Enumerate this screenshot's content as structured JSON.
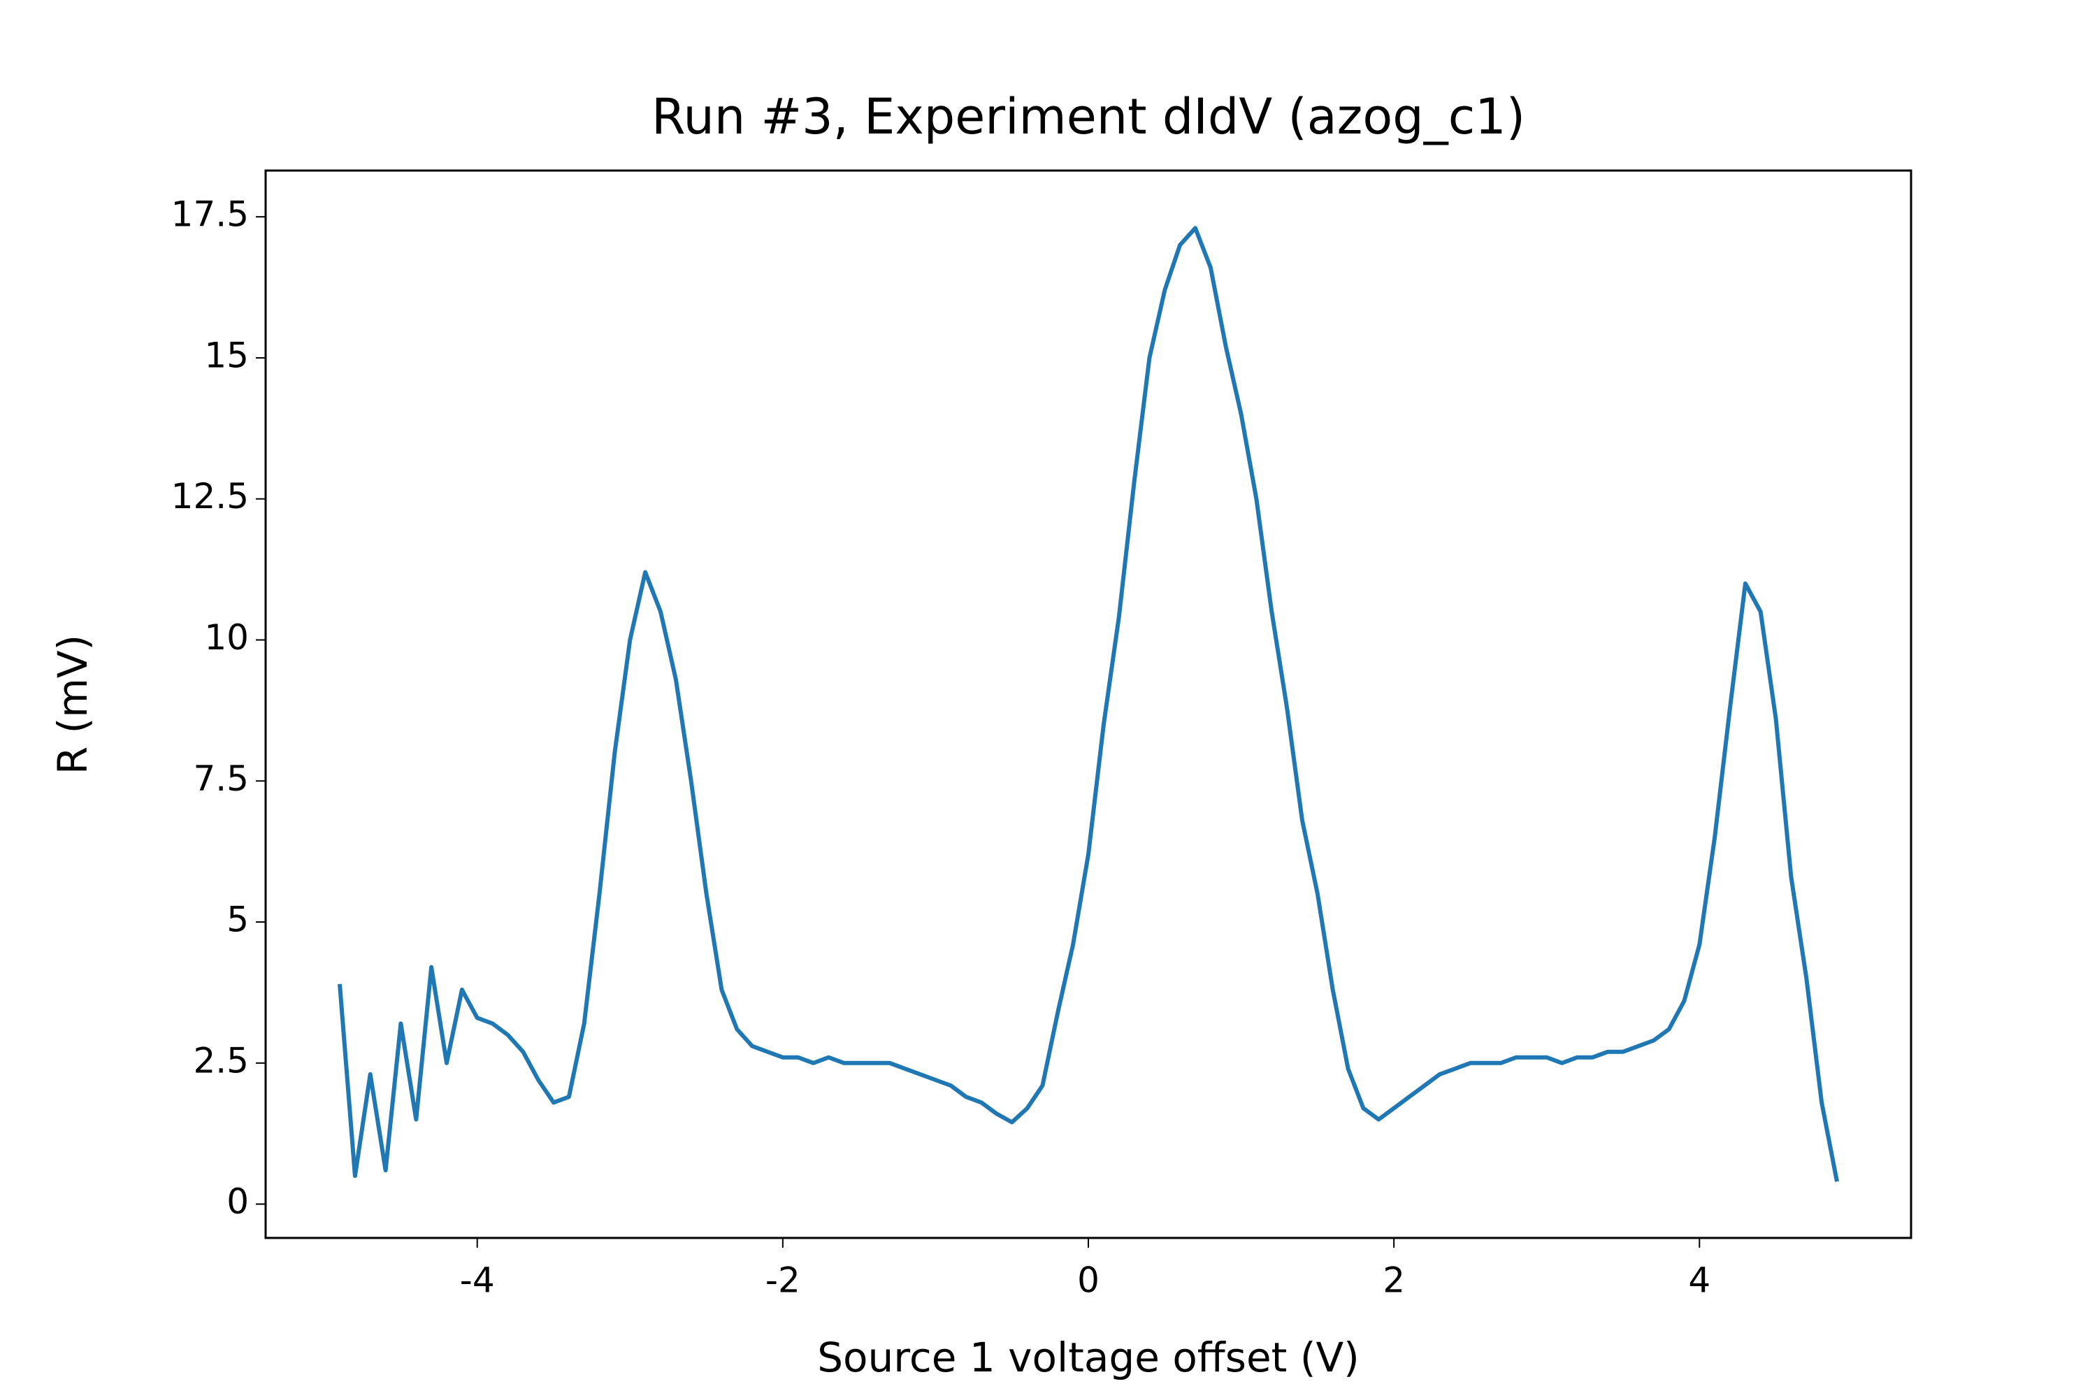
{
  "chart_data": {
    "type": "line",
    "title": "Run #3, Experiment dIdV (azog_c1)",
    "x_label": "Source 1 voltage offset (V)",
    "y_label": "R (mV)",
    "x": [
      -4.9,
      -4.8,
      -4.7,
      -4.6,
      -4.5,
      -4.4,
      -4.3,
      -4.2,
      -4.1,
      -4.0,
      -3.9,
      -3.8,
      -3.7,
      -3.6,
      -3.5,
      -3.4,
      -3.3,
      -3.2,
      -3.1,
      -3.0,
      -2.9,
      -2.8,
      -2.7,
      -2.6,
      -2.5,
      -2.4,
      -2.3,
      -2.2,
      -2.1,
      -2.0,
      -1.9,
      -1.8,
      -1.7,
      -1.6,
      -1.5,
      -1.4,
      -1.3,
      -1.2,
      -1.1,
      -1.0,
      -0.9,
      -0.8,
      -0.7,
      -0.6,
      -0.5,
      -0.4,
      -0.3,
      -0.2,
      -0.1,
      0.0,
      0.1,
      0.2,
      0.3,
      0.4,
      0.5,
      0.6,
      0.7,
      0.8,
      0.9,
      1.0,
      1.1,
      1.2,
      1.3,
      1.4,
      1.5,
      1.6,
      1.7,
      1.8,
      1.9,
      2.0,
      2.1,
      2.2,
      2.3,
      2.4,
      2.5,
      2.6,
      2.7,
      2.8,
      2.9,
      3.0,
      3.1,
      3.2,
      3.3,
      3.4,
      3.5,
      3.6,
      3.7,
      3.8,
      3.9,
      4.0,
      4.1,
      4.2,
      4.3,
      4.4,
      4.5,
      4.6,
      4.7,
      4.8,
      4.9
    ],
    "series": [
      {
        "name": "R",
        "color": "#1f77b4",
        "values": [
          3.9,
          0.5,
          2.3,
          0.6,
          3.2,
          1.5,
          4.2,
          2.5,
          3.8,
          3.3,
          3.2,
          3.0,
          2.7,
          2.2,
          1.8,
          1.9,
          3.2,
          5.5,
          8.0,
          10.0,
          11.2,
          10.5,
          9.3,
          7.5,
          5.5,
          3.8,
          3.1,
          2.8,
          2.7,
          2.6,
          2.6,
          2.5,
          2.6,
          2.5,
          2.5,
          2.5,
          2.5,
          2.4,
          2.3,
          2.2,
          2.1,
          1.9,
          1.8,
          1.6,
          1.45,
          1.7,
          2.1,
          3.4,
          4.6,
          6.2,
          8.5,
          10.4,
          12.8,
          15.0,
          16.2,
          17.0,
          17.3,
          16.6,
          15.2,
          14.0,
          12.5,
          10.5,
          8.8,
          6.8,
          5.5,
          3.8,
          2.4,
          1.7,
          1.5,
          1.7,
          1.9,
          2.1,
          2.3,
          2.4,
          2.5,
          2.5,
          2.5,
          2.6,
          2.6,
          2.6,
          2.5,
          2.6,
          2.6,
          2.7,
          2.7,
          2.8,
          2.9,
          3.1,
          3.6,
          4.6,
          6.5,
          8.8,
          11.0,
          10.5,
          8.6,
          5.8,
          4.0,
          1.8,
          0.4
        ]
      }
    ],
    "xlim": [
      -5.385,
      5.385
    ],
    "ylim": [
      -0.6,
      18.32
    ],
    "xticks": [
      -4,
      -2,
      0,
      2,
      4
    ],
    "yticks": [
      0,
      2.5,
      5,
      7.5,
      10,
      12.5,
      15,
      17.5
    ],
    "grid": false
  }
}
